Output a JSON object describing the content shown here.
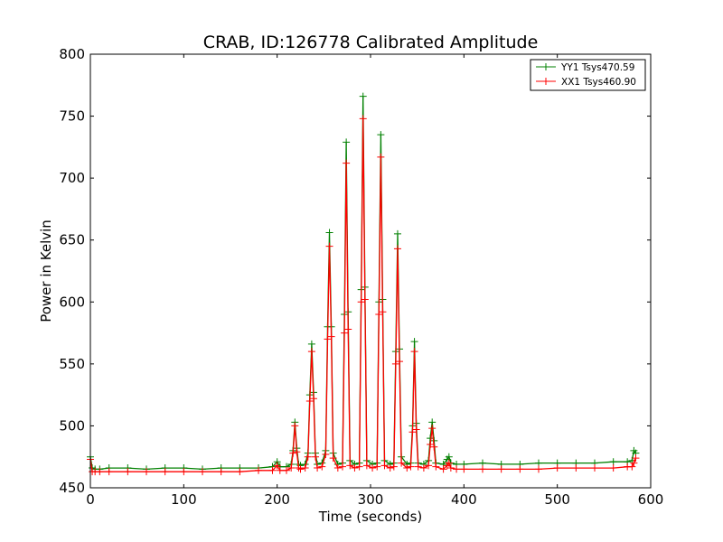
{
  "chart_data": {
    "type": "line",
    "title": "CRAB, ID:126778 Calibrated Amplitude",
    "xlabel": "Time (seconds)",
    "ylabel": "Power in Kelvin",
    "xlim": [
      0,
      600
    ],
    "ylim": [
      450,
      800
    ],
    "xticks": [
      0,
      100,
      200,
      300,
      400,
      500,
      600
    ],
    "yticks": [
      450,
      500,
      550,
      600,
      650,
      700,
      750,
      800
    ],
    "grid": false,
    "legend_position": "top-right",
    "series": [
      {
        "name": "YY1 Tsys470.59",
        "color": "#008000",
        "marker": "+",
        "x": [
          0,
          2,
          5,
          10,
          20,
          40,
          60,
          80,
          100,
          120,
          140,
          160,
          180,
          195,
          200,
          203,
          210,
          215,
          217,
          219,
          221,
          223,
          225,
          230,
          233,
          235,
          237,
          239,
          241,
          243,
          248,
          252,
          254,
          256,
          258,
          260,
          265,
          270,
          272,
          274,
          276,
          278,
          283,
          288,
          290,
          292,
          294,
          296,
          302,
          307,
          309,
          311,
          313,
          315,
          321,
          325,
          327,
          329,
          331,
          333,
          339,
          343,
          345,
          347,
          349,
          351,
          357,
          362,
          364,
          366,
          368,
          370,
          378,
          382,
          384,
          386,
          392,
          400,
          420,
          440,
          460,
          480,
          500,
          520,
          540,
          560,
          575,
          580,
          582,
          584
        ],
        "values": [
          475,
          466,
          465,
          465,
          466,
          466,
          465,
          466,
          466,
          465,
          466,
          466,
          466,
          467,
          471,
          467,
          467,
          469,
          480,
          503,
          482,
          469,
          468,
          469,
          478,
          525,
          566,
          527,
          478,
          469,
          470,
          480,
          580,
          656,
          580,
          478,
          469,
          470,
          590,
          729,
          592,
          472,
          469,
          470,
          610,
          766,
          612,
          472,
          469,
          470,
          600,
          735,
          602,
          472,
          469,
          470,
          560,
          655,
          562,
          475,
          469,
          470,
          500,
          568,
          502,
          470,
          469,
          472,
          490,
          503,
          488,
          470,
          469,
          473,
          475,
          470,
          469,
          469,
          470,
          469,
          469,
          470,
          470,
          470,
          470,
          471,
          471,
          472,
          480,
          478
        ]
      },
      {
        "name": "XX1 Tsys460.90",
        "color": "#ff0000",
        "marker": "+",
        "x": [
          0,
          2,
          5,
          10,
          20,
          40,
          60,
          80,
          100,
          120,
          140,
          160,
          180,
          195,
          200,
          203,
          210,
          215,
          217,
          219,
          221,
          223,
          225,
          230,
          233,
          235,
          237,
          239,
          241,
          243,
          248,
          252,
          254,
          256,
          258,
          260,
          265,
          270,
          272,
          274,
          276,
          278,
          283,
          288,
          290,
          292,
          294,
          296,
          302,
          307,
          309,
          311,
          313,
          315,
          321,
          325,
          327,
          329,
          331,
          333,
          339,
          343,
          345,
          347,
          349,
          351,
          357,
          362,
          364,
          366,
          368,
          370,
          378,
          382,
          384,
          386,
          392,
          400,
          420,
          440,
          460,
          480,
          500,
          520,
          540,
          560,
          575,
          580,
          582,
          584
        ],
        "values": [
          473,
          463,
          463,
          463,
          463,
          463,
          463,
          463,
          463,
          463,
          463,
          463,
          464,
          464,
          468,
          464,
          464,
          466,
          478,
          500,
          479,
          466,
          465,
          466,
          475,
          520,
          560,
          522,
          475,
          466,
          467,
          477,
          570,
          645,
          572,
          474,
          466,
          467,
          575,
          712,
          578,
          468,
          466,
          467,
          600,
          748,
          602,
          468,
          466,
          467,
          590,
          717,
          592,
          468,
          466,
          467,
          550,
          643,
          552,
          470,
          466,
          467,
          495,
          560,
          497,
          467,
          466,
          468,
          485,
          498,
          483,
          467,
          465,
          468,
          470,
          466,
          465,
          465,
          465,
          465,
          465,
          465,
          466,
          466,
          466,
          466,
          467,
          467,
          470,
          474
        ]
      }
    ]
  }
}
